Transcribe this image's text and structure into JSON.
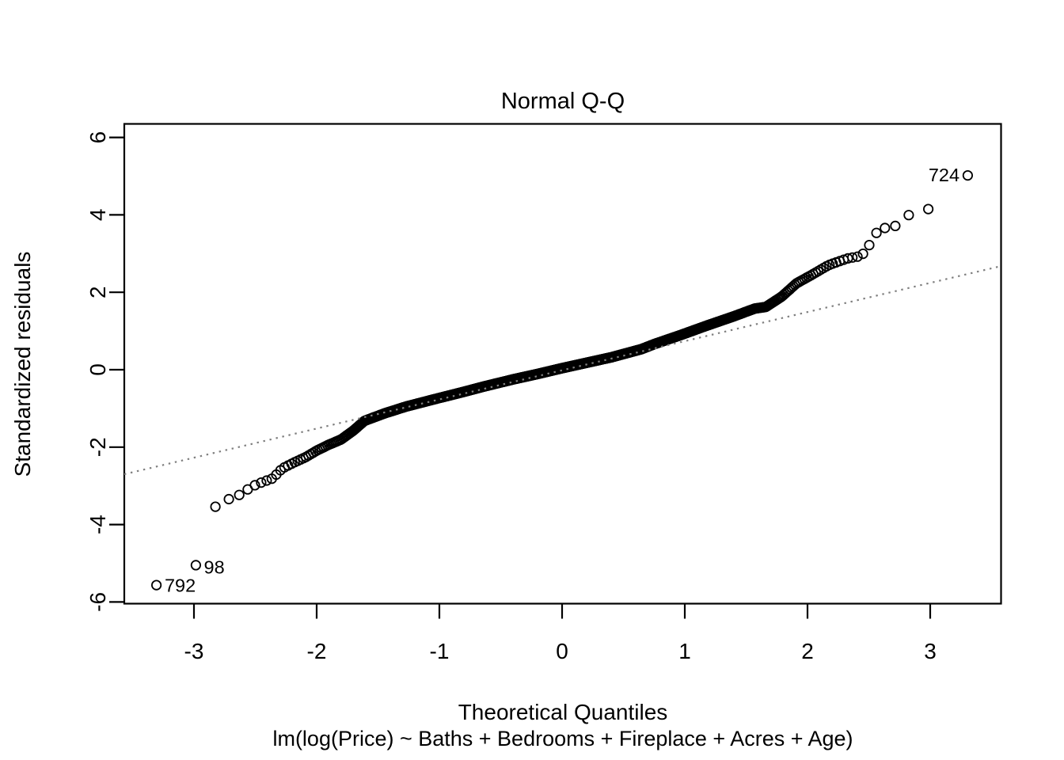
{
  "chart_data": {
    "type": "scatter",
    "subtype": "normal-qq-plot",
    "title": "Normal Q-Q",
    "xlabel": "Theoretical Quantiles",
    "ylabel": "Standardized residuals",
    "model_formula": "lm(log(Price) ~ Baths + Bedrooms + Fireplace + Acres + Age)",
    "x_ticks": [
      -3,
      -2,
      -1,
      0,
      1,
      2,
      3
    ],
    "y_ticks": [
      -6,
      -4,
      -2,
      0,
      2,
      4,
      6
    ],
    "xlim": [
      -3.57,
      3.58
    ],
    "ylim": [
      -6.04,
      6.35
    ],
    "grid": false,
    "n_points_estimate": 1057,
    "point_style": {
      "shape": "open-circle",
      "color": "#000000"
    },
    "reference_line": {
      "slope": 0.7525,
      "intercept": -0.015,
      "style": "dotted",
      "color": "#7f7f7f"
    },
    "qq_curve_knots": [
      [
        -3.31,
        -5.57
      ],
      [
        -2.99,
        -5.1
      ],
      [
        -2.83,
        -3.55
      ],
      [
        -2.72,
        -3.35
      ],
      [
        -2.62,
        -3.22
      ],
      [
        -2.53,
        -3.02
      ],
      [
        -2.44,
        -2.9
      ],
      [
        -2.36,
        -2.81
      ],
      [
        -2.28,
        -2.55
      ],
      [
        -2.2,
        -2.42
      ],
      [
        -2.09,
        -2.26
      ],
      [
        -2.0,
        -2.09
      ],
      [
        -1.91,
        -1.95
      ],
      [
        -1.8,
        -1.8
      ],
      [
        -1.7,
        -1.57
      ],
      [
        -1.61,
        -1.32
      ],
      [
        -1.44,
        -1.12
      ],
      [
        -1.27,
        -0.95
      ],
      [
        -1.05,
        -0.77
      ],
      [
        -0.8,
        -0.57
      ],
      [
        -0.645,
        -0.44
      ],
      [
        -0.4,
        -0.25
      ],
      [
        -0.2,
        -0.11
      ],
      [
        0.0,
        0.04
      ],
      [
        0.2,
        0.18
      ],
      [
        0.4,
        0.32
      ],
      [
        0.645,
        0.53
      ],
      [
        0.75,
        0.66
      ],
      [
        0.97,
        0.9
      ],
      [
        1.18,
        1.14
      ],
      [
        1.4,
        1.38
      ],
      [
        1.57,
        1.58
      ],
      [
        1.66,
        1.62
      ],
      [
        1.79,
        1.89
      ],
      [
        1.91,
        2.23
      ],
      [
        2.04,
        2.46
      ],
      [
        2.17,
        2.7
      ],
      [
        2.32,
        2.87
      ],
      [
        2.44,
        2.94
      ],
      [
        2.5,
        3.2
      ],
      [
        2.56,
        3.53
      ],
      [
        2.63,
        3.66
      ],
      [
        2.71,
        3.7
      ],
      [
        2.82,
        3.99
      ],
      [
        2.97,
        4.11
      ],
      [
        3.31,
        5.03
      ]
    ],
    "labeled_points": [
      {
        "label": "724",
        "x": 3.31,
        "y": 5.03,
        "label_side": "left"
      },
      {
        "label": "98",
        "x": -2.99,
        "y": -5.1,
        "label_side": "right"
      },
      {
        "label": "792",
        "x": -3.31,
        "y": -5.57,
        "label_side": "right"
      }
    ],
    "colors": {
      "foreground": "#000000",
      "reference_line": "#7f7f7f",
      "background": "#ffffff"
    }
  }
}
